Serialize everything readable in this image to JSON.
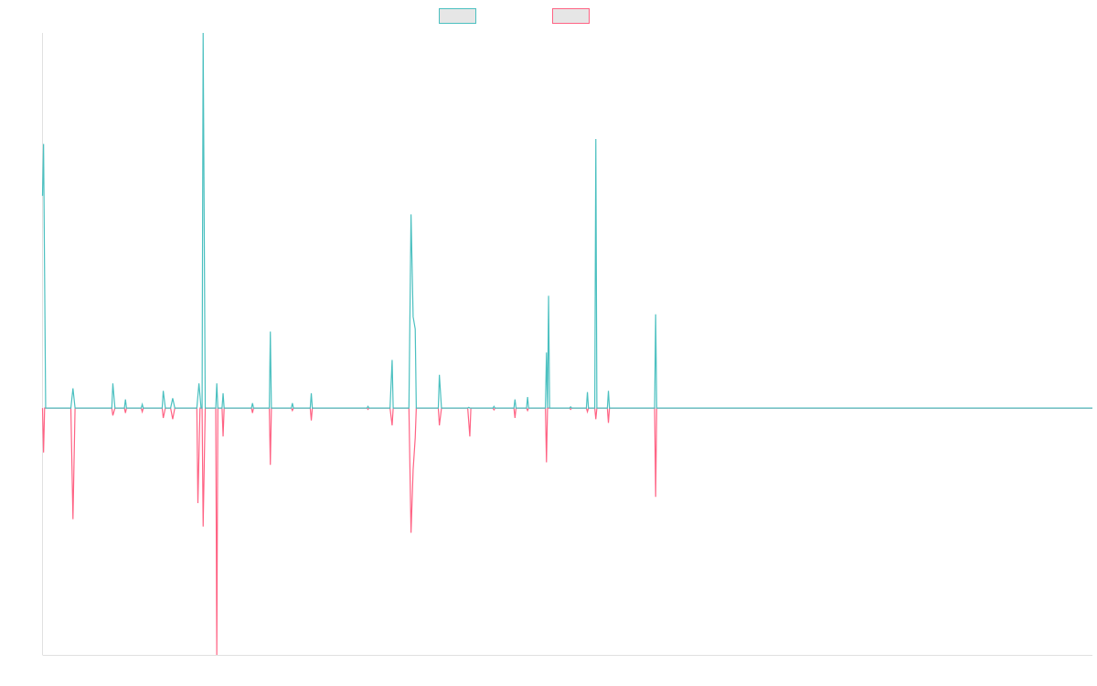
{
  "colors": {
    "series_a": "#4bc0c0",
    "series_b": "#ff6384",
    "legend_fill": "#e6e6e6",
    "axis": "#e0e0e0"
  },
  "legend": {
    "placement": "top-center",
    "items": [
      {
        "label": "",
        "color": "#4bc0c0"
      },
      {
        "label": "",
        "color": "#ff6384"
      }
    ]
  },
  "chart_data": {
    "type": "line",
    "title": "",
    "xlabel": "",
    "ylabel": "",
    "grid": false,
    "legend": "top-center",
    "x_range": [
      0,
      1000
    ],
    "ylim": [
      -100,
      152
    ],
    "series": [
      {
        "color": "#4bc0c0",
        "points": [
          [
            0,
            86
          ],
          [
            1,
            107
          ],
          [
            3,
            0
          ],
          [
            27,
            0
          ],
          [
            29,
            8
          ],
          [
            31,
            0
          ],
          [
            66,
            0
          ],
          [
            67,
            10
          ],
          [
            69,
            0
          ],
          [
            78,
            0
          ],
          [
            79,
            3.5
          ],
          [
            80,
            0
          ],
          [
            94,
            0
          ],
          [
            95,
            1.5
          ],
          [
            96,
            0
          ],
          [
            114,
            0
          ],
          [
            115,
            7
          ],
          [
            117,
            0
          ],
          [
            122,
            0
          ],
          [
            124,
            4
          ],
          [
            126,
            0
          ],
          [
            147,
            0
          ],
          [
            149,
            10
          ],
          [
            151,
            0
          ],
          [
            152,
            0
          ],
          [
            153,
            152
          ],
          [
            155,
            0
          ],
          [
            165,
            0
          ],
          [
            166,
            10
          ],
          [
            167,
            0
          ],
          [
            171,
            0
          ],
          [
            172,
            6
          ],
          [
            173,
            0
          ],
          [
            199,
            0
          ],
          [
            200,
            2
          ],
          [
            201,
            0
          ],
          [
            216,
            0
          ],
          [
            217,
            31
          ],
          [
            218,
            0
          ],
          [
            237,
            0
          ],
          [
            238,
            2
          ],
          [
            239,
            0
          ],
          [
            255,
            0
          ],
          [
            256,
            6
          ],
          [
            257,
            0
          ],
          [
            309,
            0
          ],
          [
            310,
            0.7
          ],
          [
            311,
            0
          ],
          [
            331,
            0
          ],
          [
            333,
            19.5
          ],
          [
            334,
            0
          ],
          [
            349,
            0
          ],
          [
            351,
            78.5
          ],
          [
            353,
            37
          ],
          [
            355,
            32
          ],
          [
            356,
            0
          ],
          [
            377,
            0
          ],
          [
            378,
            13.5
          ],
          [
            380,
            0
          ],
          [
            405,
            0
          ],
          [
            406,
            0.3
          ],
          [
            407,
            0
          ],
          [
            429,
            0
          ],
          [
            430,
            0.7
          ],
          [
            431,
            0
          ],
          [
            449,
            0
          ],
          [
            450,
            3.5
          ],
          [
            451,
            0
          ],
          [
            461,
            0
          ],
          [
            462,
            4.5
          ],
          [
            463,
            0
          ],
          [
            479,
            0
          ],
          [
            480,
            22.5
          ],
          [
            481,
            0
          ],
          [
            482,
            45.5
          ],
          [
            483,
            0
          ],
          [
            502,
            0
          ],
          [
            503,
            0.5
          ],
          [
            504,
            0
          ],
          [
            518,
            0
          ],
          [
            519,
            6.5
          ],
          [
            520,
            0
          ],
          [
            526,
            0
          ],
          [
            527,
            109
          ],
          [
            528,
            0
          ],
          [
            530,
            0
          ],
          [
            538,
            0
          ],
          [
            539,
            7
          ],
          [
            540,
            0
          ],
          [
            583,
            0
          ],
          [
            584,
            38
          ],
          [
            585,
            0
          ],
          [
            1000,
            0
          ]
        ]
      },
      {
        "color": "#ff6384",
        "points": [
          [
            0,
            0
          ],
          [
            1,
            -18
          ],
          [
            2,
            0
          ],
          [
            27,
            0
          ],
          [
            29,
            -45
          ],
          [
            31,
            0
          ],
          [
            66,
            0
          ],
          [
            67,
            -3
          ],
          [
            69,
            0
          ],
          [
            78,
            0
          ],
          [
            79,
            -2
          ],
          [
            80,
            0
          ],
          [
            94,
            0
          ],
          [
            95,
            -1.5
          ],
          [
            96,
            0
          ],
          [
            114,
            0
          ],
          [
            115,
            -4
          ],
          [
            117,
            0
          ],
          [
            122,
            0
          ],
          [
            124,
            -4.5
          ],
          [
            126,
            0
          ],
          [
            147,
            0
          ],
          [
            148,
            -38.5
          ],
          [
            150,
            0
          ],
          [
            152,
            0
          ],
          [
            153,
            -48
          ],
          [
            155,
            0
          ],
          [
            165,
            0
          ],
          [
            166,
            -100
          ],
          [
            167,
            0
          ],
          [
            171,
            0
          ],
          [
            172,
            -11.5
          ],
          [
            173,
            0
          ],
          [
            199,
            0
          ],
          [
            200,
            -2
          ],
          [
            201,
            0
          ],
          [
            216,
            0
          ],
          [
            217,
            -23
          ],
          [
            218,
            0
          ],
          [
            237,
            0
          ],
          [
            238,
            -1
          ],
          [
            239,
            0
          ],
          [
            255,
            0
          ],
          [
            256,
            -5
          ],
          [
            257,
            0
          ],
          [
            309,
            0
          ],
          [
            310,
            -0.5
          ],
          [
            311,
            0
          ],
          [
            331,
            0
          ],
          [
            333,
            -7
          ],
          [
            334,
            0
          ],
          [
            349,
            0
          ],
          [
            351,
            -50.5
          ],
          [
            353,
            -25
          ],
          [
            355,
            -12
          ],
          [
            356,
            0
          ],
          [
            377,
            0
          ],
          [
            378,
            -7
          ],
          [
            380,
            0
          ],
          [
            405,
            0
          ],
          [
            407,
            -11.5
          ],
          [
            408,
            0
          ],
          [
            429,
            0
          ],
          [
            430,
            -0.7
          ],
          [
            431,
            0
          ],
          [
            449,
            0
          ],
          [
            450,
            -4
          ],
          [
            451,
            0
          ],
          [
            461,
            0
          ],
          [
            462,
            -1
          ],
          [
            463,
            0
          ],
          [
            479,
            0
          ],
          [
            480,
            -22
          ],
          [
            481,
            0
          ],
          [
            502,
            0
          ],
          [
            503,
            -0.5
          ],
          [
            504,
            0
          ],
          [
            518,
            0
          ],
          [
            519,
            -1.5
          ],
          [
            520,
            0
          ],
          [
            526,
            0
          ],
          [
            527,
            -4.5
          ],
          [
            528,
            0
          ],
          [
            538,
            0
          ],
          [
            539,
            -6
          ],
          [
            540,
            0
          ],
          [
            583,
            0
          ],
          [
            584,
            -36
          ],
          [
            585,
            0
          ],
          [
            1000,
            0
          ]
        ]
      }
    ]
  }
}
